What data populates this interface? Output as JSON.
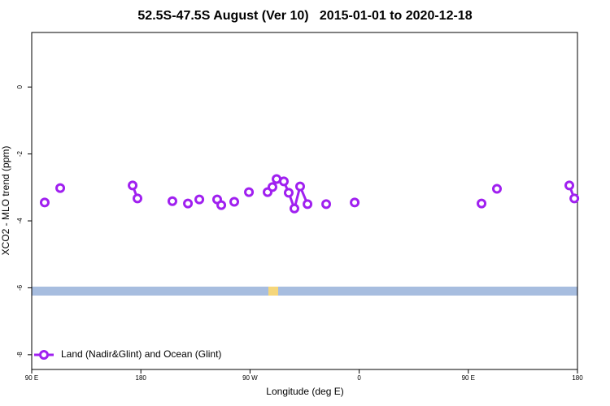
{
  "chart_data": {
    "type": "line",
    "title": "52.5S-47.5S August (Ver 10)   2015-01-01 to 2020-12-18",
    "x_label": "Longitude (deg E)",
    "y_label": "XCO2 - MLO trend (ppm)",
    "xlim": [
      90,
      540
    ],
    "xticks": [
      {
        "value": 90,
        "label": "90 E"
      },
      180,
      {
        "value": 270,
        "label": "90 W"
      },
      {
        "value": 360,
        "label": "0"
      },
      {
        "value": 450,
        "label": "90 E"
      },
      {
        "value": 540,
        "label": "180"
      }
    ],
    "ylim": [
      -8.44,
      1.63
    ],
    "yticks": [
      0,
      -2,
      -4,
      -6,
      -8
    ],
    "legend": "bottomleft",
    "series": [
      {
        "name": "Land (Nadir&Glint) and Ocean (Glint)",
        "color": "#a020f0",
        "x": [
          100.7,
          null,
          113.5,
          null,
          173.2,
          177.2,
          null,
          206,
          null,
          218.8,
          null,
          228.2,
          null,
          242.9,
          246.3,
          null,
          257,
          null,
          269.1,
          null,
          284.5,
          288.5,
          291.9,
          297.9,
          301.9,
          306.6,
          311.3,
          317.4,
          null,
          332.8,
          null,
          356.3,
          null,
          460.9,
          null,
          473.6,
          null,
          533.3,
          537.4
        ],
        "values": [
          -3.45,
          null,
          -3.02,
          null,
          -2.94,
          -3.33,
          null,
          -3.41,
          null,
          -3.48,
          null,
          -3.36,
          null,
          -3.36,
          -3.53,
          null,
          -3.43,
          null,
          -3.14,
          null,
          -3.14,
          -2.99,
          -2.75,
          -2.82,
          -3.16,
          -3.63,
          -2.97,
          -3.5,
          null,
          -3.5,
          null,
          -3.45,
          null,
          -3.48,
          null,
          -3.04,
          null,
          -2.94,
          -3.33
        ]
      }
    ]
  }
}
